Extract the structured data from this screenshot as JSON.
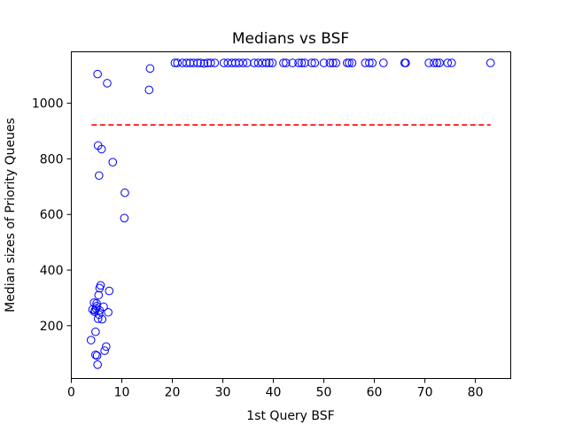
{
  "chart_data": {
    "type": "scatter",
    "title": "Medians vs BSF",
    "xlabel": "1st Query BSF",
    "ylabel": "Median sizes of Priority Queues",
    "xlim": [
      0,
      87
    ],
    "ylim": [
      10,
      1185
    ],
    "xticks": [
      0,
      10,
      20,
      30,
      40,
      50,
      60,
      70,
      80
    ],
    "yticks": [
      200,
      400,
      600,
      800,
      1000
    ],
    "grid": false,
    "marker_color": "#0000ff",
    "reference_line": {
      "y": 922,
      "x_range": [
        4,
        83
      ],
      "color": "#ff0000",
      "style": "dashed"
    },
    "series": [
      {
        "marker": "hollow-circle",
        "x": [
          5.2,
          7.1,
          15.6,
          15.4,
          5.3,
          6.0,
          8.2,
          5.5,
          10.6,
          10.5,
          7.5,
          5.8,
          5.4,
          5.0,
          4.5,
          6.4,
          7.3,
          4.7,
          5.6,
          4.2,
          4.9,
          5.0,
          5.3,
          6.1,
          5.5,
          4.8,
          3.9,
          6.9,
          6.6,
          4.8,
          5.1,
          5.2,
          4.6,
          5.6
        ],
        "y": [
          1105,
          1072,
          1125,
          1048,
          848,
          835,
          788,
          740,
          678,
          587,
          325,
          345,
          310,
          270,
          283,
          268,
          248,
          255,
          255,
          258,
          262,
          280,
          225,
          223,
          240,
          178,
          148,
          125,
          110,
          95,
          92,
          60,
          250,
          335
        ]
      },
      {
        "marker": "hollow-circle",
        "x": [
          20.5,
          21.0,
          22.0,
          22.8,
          23.5,
          24.2,
          25.0,
          25.6,
          26.3,
          27.0,
          27.6,
          28.4,
          30.2,
          31.0,
          31.8,
          32.5,
          33.2,
          34.0,
          34.8,
          36.2,
          37.0,
          37.8,
          38.6,
          39.2,
          39.8,
          42.0,
          42.5,
          43.8,
          45.0,
          45.6,
          46.2,
          47.6,
          48.2,
          50.0,
          51.2,
          51.8,
          52.4,
          54.6,
          55.0,
          55.6,
          58.2,
          59.0,
          59.6,
          61.8,
          66.0,
          66.2,
          70.8,
          71.8,
          72.4,
          72.9,
          74.5,
          75.3,
          83.0
        ],
        "y": [
          1145,
          1145,
          1145,
          1145,
          1145,
          1145,
          1145,
          1145,
          1143,
          1145,
          1145,
          1145,
          1145,
          1145,
          1145,
          1145,
          1145,
          1145,
          1145,
          1145,
          1145,
          1145,
          1145,
          1145,
          1145,
          1145,
          1145,
          1145,
          1145,
          1145,
          1145,
          1145,
          1145,
          1145,
          1145,
          1145,
          1145,
          1145,
          1145,
          1145,
          1145,
          1145,
          1145,
          1145,
          1145,
          1145,
          1145,
          1145,
          1145,
          1145,
          1145,
          1145,
          1145
        ]
      }
    ]
  }
}
